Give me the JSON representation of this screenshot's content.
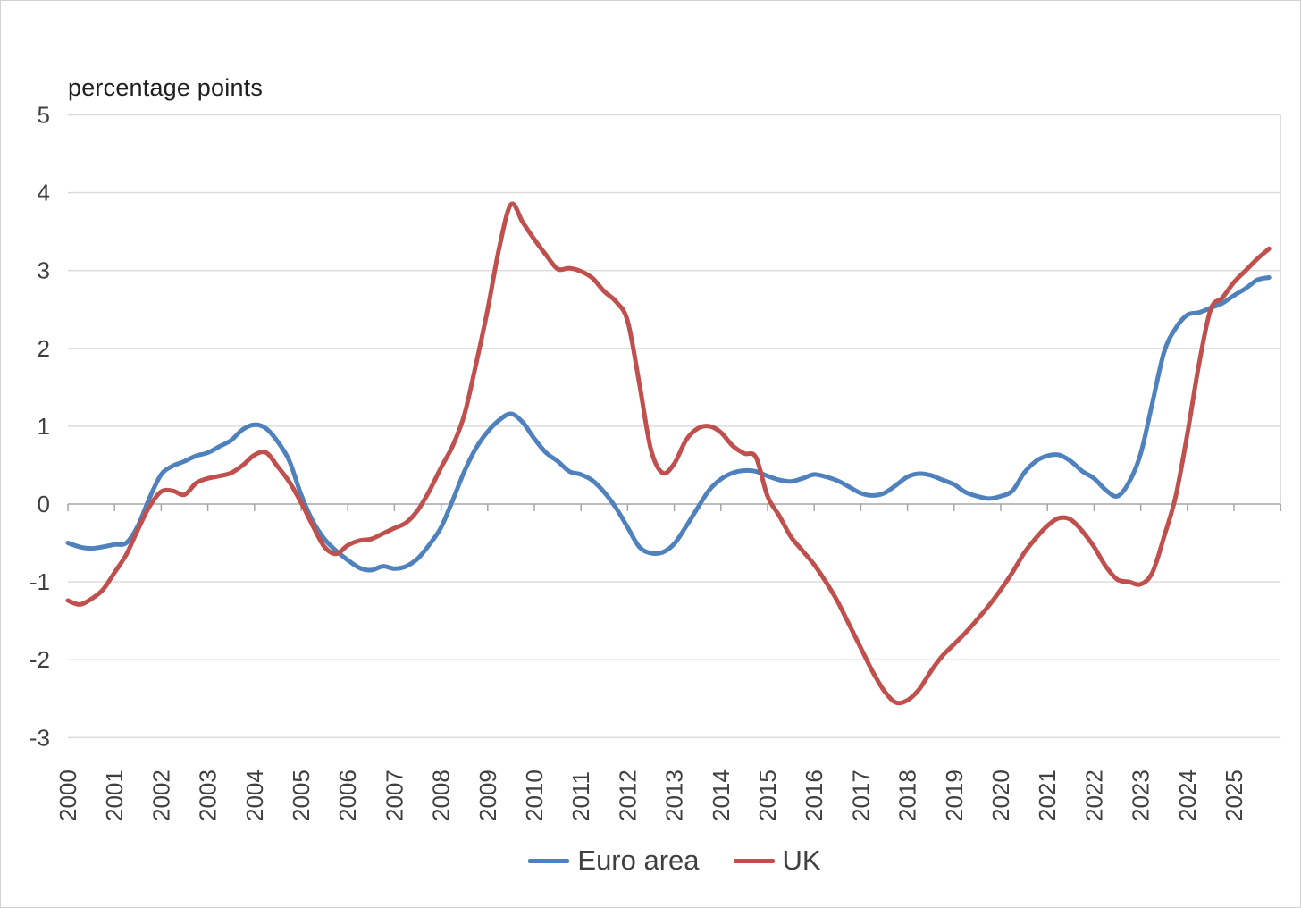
{
  "chart": {
    "title": "percentage points"
  },
  "chart_data": {
    "type": "line",
    "title": "percentage points",
    "xlabel": "",
    "ylabel": "percentage points",
    "ylim": [
      -3,
      5
    ],
    "yticks": [
      -3,
      -2,
      -1,
      0,
      1,
      2,
      3,
      4,
      5
    ],
    "grid": "horizontal",
    "legend_position": "bottom",
    "x_start": 2000,
    "x_step": 0.25,
    "x_end": 2026,
    "x_tick_labels": [
      "2000",
      "2001",
      "2002",
      "2003",
      "2004",
      "2005",
      "2006",
      "2007",
      "2008",
      "2009",
      "2010",
      "2011",
      "2012",
      "2013",
      "2014",
      "2015",
      "2016",
      "2017",
      "2018",
      "2019",
      "2020",
      "2021",
      "2022",
      "2023",
      "2024",
      "2025"
    ],
    "series": [
      {
        "name": "Euro area",
        "color": "#4F81BD",
        "values": [
          -0.5,
          -0.55,
          -0.57,
          -0.55,
          -0.52,
          -0.5,
          -0.28,
          0.08,
          0.38,
          0.49,
          0.55,
          0.62,
          0.66,
          0.74,
          0.82,
          0.96,
          1.02,
          0.97,
          0.8,
          0.55,
          0.12,
          -0.22,
          -0.45,
          -0.6,
          -0.72,
          -0.82,
          -0.85,
          -0.8,
          -0.83,
          -0.8,
          -0.7,
          -0.52,
          -0.3,
          0.05,
          0.42,
          0.72,
          0.93,
          1.08,
          1.16,
          1.05,
          0.84,
          0.66,
          0.55,
          0.42,
          0.38,
          0.3,
          0.15,
          -0.05,
          -0.3,
          -0.55,
          -0.63,
          -0.62,
          -0.51,
          -0.29,
          -0.05,
          0.18,
          0.32,
          0.4,
          0.43,
          0.42,
          0.36,
          0.31,
          0.29,
          0.33,
          0.38,
          0.35,
          0.3,
          0.22,
          0.14,
          0.11,
          0.14,
          0.24,
          0.35,
          0.39,
          0.37,
          0.31,
          0.25,
          0.15,
          0.1,
          0.07,
          0.1,
          0.17,
          0.4,
          0.55,
          0.62,
          0.63,
          0.55,
          0.42,
          0.33,
          0.18,
          0.1,
          0.28,
          0.65,
          1.3,
          1.95,
          2.26,
          2.43,
          2.46,
          2.52,
          2.58,
          2.68,
          2.77,
          2.88,
          2.91
        ]
      },
      {
        "name": "UK",
        "color": "#C0504D",
        "values": [
          -1.24,
          -1.29,
          -1.22,
          -1.1,
          -0.88,
          -0.65,
          -0.33,
          -0.03,
          0.16,
          0.17,
          0.12,
          0.27,
          0.33,
          0.36,
          0.4,
          0.5,
          0.63,
          0.66,
          0.48,
          0.28,
          0.02,
          -0.28,
          -0.55,
          -0.64,
          -0.53,
          -0.47,
          -0.45,
          -0.38,
          -0.31,
          -0.24,
          -0.08,
          0.17,
          0.47,
          0.75,
          1.15,
          1.8,
          2.5,
          3.3,
          3.85,
          3.62,
          3.4,
          3.2,
          3.02,
          3.03,
          2.99,
          2.9,
          2.73,
          2.6,
          2.35,
          1.55,
          0.7,
          0.4,
          0.52,
          0.82,
          0.97,
          1.0,
          0.92,
          0.75,
          0.65,
          0.6,
          0.1,
          -0.15,
          -0.42,
          -0.6,
          -0.78,
          -1.0,
          -1.25,
          -1.55,
          -1.85,
          -2.15,
          -2.4,
          -2.55,
          -2.52,
          -2.38,
          -2.15,
          -1.95,
          -1.8,
          -1.65,
          -1.48,
          -1.3,
          -1.1,
          -0.88,
          -0.63,
          -0.44,
          -0.28,
          -0.18,
          -0.2,
          -0.35,
          -0.55,
          -0.8,
          -0.97,
          -1.0,
          -1.03,
          -0.88,
          -0.42,
          0.1,
          0.9,
          1.8,
          2.5,
          2.65,
          2.85,
          3.0,
          3.15,
          3.28
        ]
      }
    ]
  }
}
